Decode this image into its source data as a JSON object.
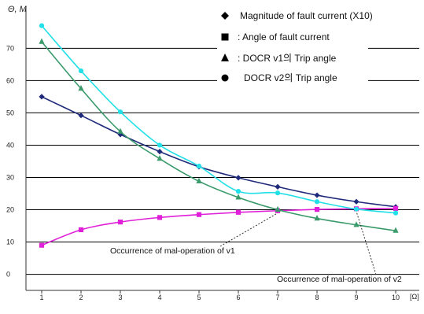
{
  "chart_data": {
    "type": "line",
    "ylabel": "Θ, M",
    "xunit": "[Ω]",
    "x": [
      1,
      2,
      3,
      4,
      5,
      6,
      7,
      8,
      9,
      10
    ],
    "x_tick_labels": [
      "1",
      "2",
      "3",
      "4",
      "5",
      "6",
      "7",
      "8",
      "9",
      "10"
    ],
    "y_tick_labels": [
      "70",
      "60",
      "50",
      "40",
      "30",
      "20",
      "10",
      "0"
    ],
    "y_ticks": [
      70,
      60,
      50,
      40,
      30,
      20,
      10,
      0
    ],
    "xlim": [
      0.6,
      10.6
    ],
    "ylim": [
      -4,
      83
    ],
    "grid": "horizontal",
    "legend_position": "top-right",
    "series": [
      {
        "name": "Magnitude of fault current (X10)",
        "marker": "diamond",
        "color": "#1f2a7a",
        "values": [
          55.0,
          49.2,
          43.3,
          38.0,
          33.3,
          29.9,
          27.1,
          24.5,
          22.5,
          20.9
        ]
      },
      {
        "name": ": Angle of fault current",
        "marker": "square",
        "color": "#e020d8",
        "values": [
          9.0,
          13.8,
          16.2,
          17.6,
          18.5,
          19.2,
          19.7,
          20.1,
          20.3,
          20.4
        ]
      },
      {
        "name": ": DOCR v1의 Trip angle",
        "marker": "triangle",
        "color": "#3a9a6a",
        "values": [
          72.0,
          57.5,
          44.2,
          35.8,
          28.8,
          23.8,
          20.0,
          17.3,
          15.3,
          13.5
        ]
      },
      {
        "name": "DOCR v2의 Trip angle",
        "marker": "circle",
        "color": "#22e0e8",
        "values": [
          77.0,
          63.0,
          50.3,
          40.0,
          33.5,
          25.7,
          25.2,
          22.5,
          20.2,
          19.0
        ]
      }
    ],
    "annotations": [
      {
        "text": "Occurrence of mal-operation of v1",
        "x": 7,
        "y": 19.7
      },
      {
        "text": "Occurrence of mal-operation of v2",
        "x": 9,
        "y": 20.2
      }
    ]
  },
  "colors": {
    "grid": "#000000",
    "axis": "#333333"
  }
}
